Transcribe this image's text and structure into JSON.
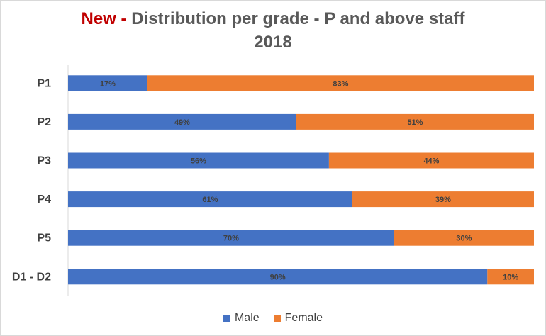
{
  "title": {
    "prefix": "New -",
    "main": "Distribution per grade - P and above staff",
    "year": "2018"
  },
  "colors": {
    "male": "#4472c4",
    "female": "#ed7d31",
    "prefix": "#c00000"
  },
  "legend": {
    "male_label": "Male",
    "female_label": "Female"
  },
  "chart_data": {
    "type": "bar",
    "orientation": "horizontal",
    "stacked": true,
    "percent": true,
    "title": "New - Distribution per grade - P and above staff 2018",
    "categories": [
      "P1",
      "P2",
      "P3",
      "P4",
      "P5",
      "D1 - D2"
    ],
    "series": [
      {
        "name": "Male",
        "values": [
          17,
          49,
          56,
          61,
          70,
          90
        ]
      },
      {
        "name": "Female",
        "values": [
          83,
          51,
          44,
          39,
          30,
          10
        ]
      }
    ],
    "xlim": [
      0,
      100
    ],
    "grid": false,
    "legend_position": "bottom"
  }
}
